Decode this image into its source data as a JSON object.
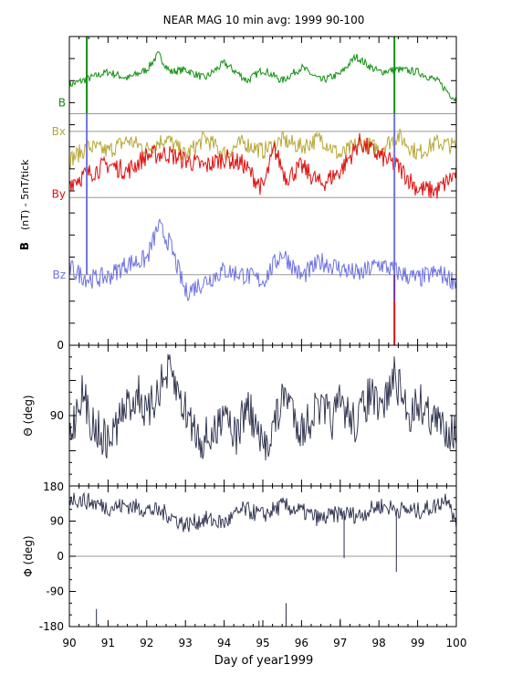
{
  "chart_data": {
    "type": "line",
    "title": "NEAR MAG 10 min avg: 1999 90-100",
    "xlabel": "Day of year1999",
    "xlim": [
      90,
      100
    ],
    "x_ticks": [
      "90",
      "91",
      "92",
      "93",
      "94",
      "95",
      "96",
      "97",
      "98",
      "99",
      "100"
    ],
    "panels": [
      {
        "id": "b-components",
        "ylabel_bold": "B",
        "ylabel": "(nT) - 5nT/tick",
        "y_ticks": [
          "0"
        ],
        "series": [
          {
            "name": "B",
            "color": "#109010",
            "baseline_ticks": 10.5,
            "x": [
              90,
              90.5,
              91,
              91.5,
              92,
              92.3,
              92.6,
              93,
              93.5,
              94,
              94.3,
              94.6,
              95,
              95.5,
              96,
              96.5,
              97,
              97.4,
              97.8,
              98,
              98.5,
              99,
              99.5,
              100
            ],
            "values": [
              1.3,
              1.6,
              1.9,
              1.6,
              2.0,
              2.7,
              1.9,
              2.0,
              1.6,
              2.3,
              1.9,
              1.5,
              2.0,
              1.5,
              2.1,
              1.5,
              1.8,
              2.6,
              2.1,
              1.9,
              2.0,
              1.9,
              1.5,
              0.6
            ]
          },
          {
            "name": "Bx",
            "color": "#b8a83a",
            "baseline_ticks": 9.7,
            "x": [
              90,
              90.5,
              91,
              91.5,
              92,
              92.5,
              93,
              93.5,
              94,
              94.5,
              95,
              95.5,
              96,
              96.5,
              97,
              97.5,
              98,
              98.5,
              99,
              99.5,
              100
            ],
            "values": [
              -1.3,
              -0.7,
              -0.9,
              -0.4,
              -0.8,
              -0.3,
              -1.1,
              -0.3,
              -1.0,
              -0.5,
              -0.9,
              -0.4,
              -0.7,
              -0.3,
              -1.1,
              -0.5,
              -0.8,
              -0.2,
              -1.0,
              -0.5,
              -0.7
            ]
          },
          {
            "name": "By",
            "color": "#e01010",
            "baseline_ticks": 6.7,
            "x": [
              90,
              90.5,
              91,
              91.5,
              92,
              92.5,
              93,
              93.5,
              94,
              94.5,
              95,
              95.3,
              95.6,
              96,
              96.5,
              97,
              97.5,
              98,
              98.5,
              99,
              99.5,
              100
            ],
            "values": [
              0.7,
              1.1,
              1.5,
              1.2,
              1.9,
              2.0,
              1.7,
              1.4,
              1.8,
              1.5,
              0.4,
              2.2,
              0.9,
              1.4,
              0.6,
              1.2,
              2.5,
              1.9,
              1.4,
              0.4,
              0.3,
              1.1
            ]
          },
          {
            "name": "Bz",
            "color": "#6f73e0",
            "baseline_ticks": 3.2,
            "x": [
              90,
              90.5,
              91,
              91.5,
              92,
              92.3,
              92.6,
              93,
              93.5,
              94,
              94.5,
              95,
              95.5,
              96,
              96.5,
              97,
              97.5,
              98,
              98.5,
              99,
              99.5,
              100
            ],
            "values": [
              0.3,
              -0.2,
              -0.1,
              0.5,
              0.7,
              2.2,
              1.4,
              -0.8,
              -0.3,
              0.2,
              0.0,
              -0.3,
              1.0,
              -0.1,
              0.6,
              0.3,
              0.0,
              0.5,
              0.1,
              -0.2,
              0.1,
              -0.3
            ]
          }
        ]
      },
      {
        "id": "theta",
        "ylabel": "Θ (deg)",
        "ylim": [
          180,
          0
        ],
        "y_ticks": [
          "90"
        ],
        "series": [
          {
            "color": "#282c48",
            "x": [
              90,
              90.3,
              90.6,
              91,
              91.4,
              91.8,
              92,
              92.3,
              92.6,
              93,
              93.4,
              93.8,
              94,
              94.3,
              94.6,
              95,
              95.3,
              95.6,
              96,
              96.4,
              96.8,
              97,
              97.4,
              97.8,
              98,
              98.4,
              98.8,
              99,
              99.5,
              100
            ],
            "values": [
              120,
              60,
              100,
              125,
              85,
              60,
              95,
              55,
              35,
              85,
              120,
              115,
              70,
              120,
              75,
              135,
              100,
              60,
              110,
              80,
              95,
              75,
              100,
              60,
              90,
              40,
              90,
              70,
              100,
              110
            ]
          }
        ]
      },
      {
        "id": "phi",
        "ylabel": "Φ (deg)",
        "ylim": [
          -180,
          180
        ],
        "y_ticks": [
          "180",
          "90",
          "0",
          "-90",
          "-180"
        ],
        "zero_line": true,
        "series": [
          {
            "color": "#282c48",
            "x": [
              90,
              90.5,
              91,
              91.5,
              92,
              92.5,
              93,
              93.5,
              94,
              94.5,
              95,
              95.5,
              96,
              96.5,
              97,
              97.5,
              98,
              98.5,
              99,
              99.5,
              99.8,
              100
            ],
            "values": [
              150,
              140,
              125,
              130,
              120,
              110,
              80,
              95,
              85,
              120,
              105,
              130,
              115,
              95,
              110,
              105,
              130,
              120,
              115,
              130,
              155,
              70
            ]
          }
        ]
      }
    ]
  }
}
